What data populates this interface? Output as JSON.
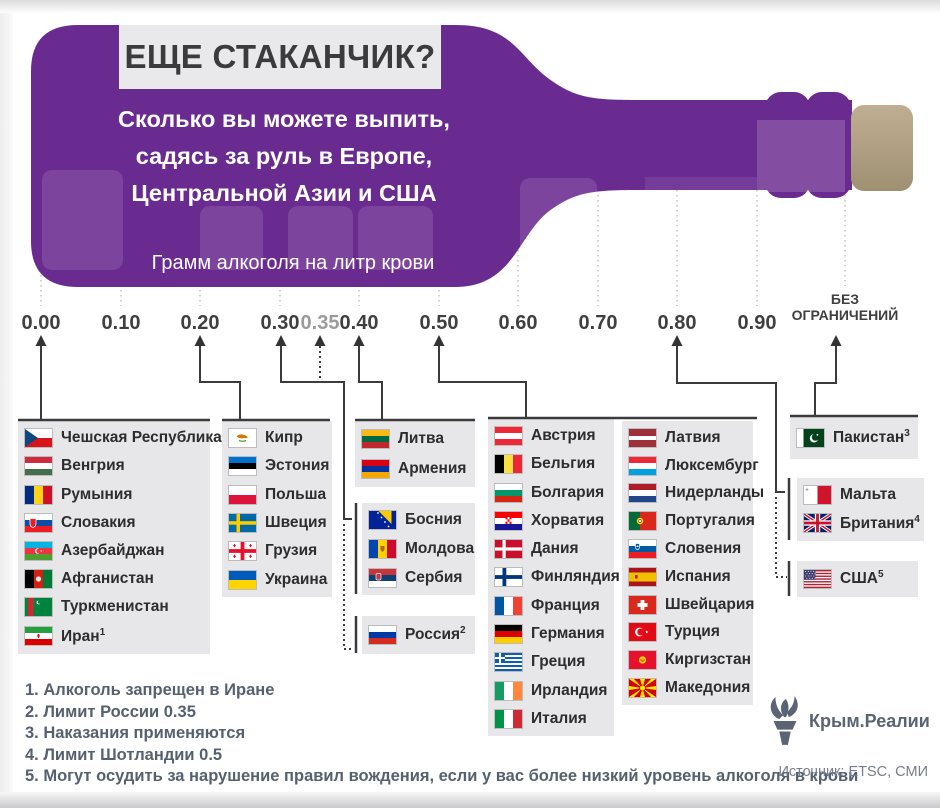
{
  "header": {
    "title": "ЕЩЕ СТАКАНЧИК?",
    "subtitle_lines": [
      "Сколько вы можете выпить,",
      "садясь за руль в Европе,",
      "Центральной Азии и США"
    ],
    "axis_label": "Грамм алкоголя на литр крови"
  },
  "scale": {
    "ticks": [
      {
        "label": "0.00"
      },
      {
        "label": "0.10"
      },
      {
        "label": "0.20"
      },
      {
        "label": "0.30"
      },
      {
        "label": "0.35",
        "muted": true
      },
      {
        "label": "0.40"
      },
      {
        "label": "0.50"
      },
      {
        "label": "0.60"
      },
      {
        "label": "0.70"
      },
      {
        "label": "0.80"
      },
      {
        "label": "0.90"
      }
    ],
    "no_limit_lines": [
      "БЕЗ",
      "ОГРАНИЧЕНИЙ"
    ]
  },
  "groups": [
    {
      "id": "g000",
      "limit": "0.00",
      "items": [
        {
          "flag": "cz",
          "label": "Чешская Республика"
        },
        {
          "flag": "hu",
          "label": "Венгрия"
        },
        {
          "flag": "ro",
          "label": "Румыния"
        },
        {
          "flag": "sk",
          "label": "Словакия"
        },
        {
          "flag": "az",
          "label": "Азербайджан"
        },
        {
          "flag": "af",
          "label": "Афганистан"
        },
        {
          "flag": "tm",
          "label": "Туркменистан"
        },
        {
          "flag": "ir",
          "label": "Иран",
          "sup": "1"
        }
      ]
    },
    {
      "id": "g020",
      "limit": "0.20",
      "items": [
        {
          "flag": "cy",
          "label": "Кипр"
        },
        {
          "flag": "ee",
          "label": "Эстония"
        },
        {
          "flag": "pl",
          "label": "Польша"
        },
        {
          "flag": "se",
          "label": "Швеция"
        },
        {
          "flag": "ge",
          "label": "Грузия"
        },
        {
          "flag": "ua",
          "label": "Украина"
        }
      ]
    },
    {
      "id": "g040",
      "limit": "0.40",
      "items": [
        {
          "flag": "lt",
          "label": "Литва"
        },
        {
          "flag": "am",
          "label": "Армения"
        }
      ]
    },
    {
      "id": "g030",
      "limit": "0.30",
      "items": [
        {
          "flag": "ba",
          "label": "Босния"
        },
        {
          "flag": "md",
          "label": "Молдова"
        },
        {
          "flag": "rs",
          "label": "Сербия"
        }
      ]
    },
    {
      "id": "g035",
      "limit": "0.35",
      "items": [
        {
          "flag": "ru",
          "label": "Россия",
          "sup": "2"
        }
      ]
    },
    {
      "id": "g050a",
      "limit": "0.50",
      "items": [
        {
          "flag": "at",
          "label": "Австрия"
        },
        {
          "flag": "be",
          "label": "Бельгия"
        },
        {
          "flag": "bg",
          "label": "Болгария"
        },
        {
          "flag": "hr",
          "label": "Хорватия"
        },
        {
          "flag": "dk",
          "label": "Дания"
        },
        {
          "flag": "fi",
          "label": "Финляндия"
        },
        {
          "flag": "fr",
          "label": "Франция"
        },
        {
          "flag": "de",
          "label": "Германия"
        },
        {
          "flag": "gr",
          "label": "Греция"
        },
        {
          "flag": "ie",
          "label": "Ирландия"
        },
        {
          "flag": "it",
          "label": "Италия"
        }
      ]
    },
    {
      "id": "g050b",
      "limit": "0.50",
      "items": [
        {
          "flag": "lv",
          "label": "Латвия"
        },
        {
          "flag": "lu",
          "label": "Люксембург"
        },
        {
          "flag": "nl",
          "label": "Нидерланды"
        },
        {
          "flag": "pt",
          "label": "Португалия"
        },
        {
          "flag": "si",
          "label": "Словения"
        },
        {
          "flag": "es",
          "label": "Испания"
        },
        {
          "flag": "ch",
          "label": "Швейцария"
        },
        {
          "flag": "tr",
          "label": "Турция"
        },
        {
          "flag": "kg",
          "label": "Киргизстан"
        },
        {
          "flag": "mk",
          "label": "Македония"
        }
      ]
    },
    {
      "id": "gnolim",
      "limit": "без ограничений",
      "items": [
        {
          "flag": "pk",
          "label": "Пакистан",
          "sup": "3"
        }
      ]
    },
    {
      "id": "g080",
      "limit": "0.80",
      "items": [
        {
          "flag": "mt",
          "label": "Мальта"
        },
        {
          "flag": "gb",
          "label": "Британия",
          "sup": "4"
        }
      ]
    },
    {
      "id": "g080usa",
      "limit": "0.80",
      "items": [
        {
          "flag": "us",
          "label": "США",
          "sup": "5"
        }
      ]
    }
  ],
  "footnotes": [
    "1. Алкоголь запрещен в Иране",
    "2. Лимит России 0.35",
    "3. Наказания применяются",
    "4. Лимит Шотландии 0.5",
    "5. Могут осудить за нарушение правил вождения, если у вас более низкий уровень алкоголя в крови"
  ],
  "brand": "Крым.Реалии",
  "source": "Источник: ETSC, СМИ",
  "colors": {
    "bottle": "#6a2b90",
    "cork": "#b3a287",
    "box_bg": "#e7e6e8",
    "line": "#3b3b3b",
    "footnote": "#57606f",
    "muted_tick": "#9b9b9b"
  },
  "chart_data": {
    "type": "scatter",
    "title": "ЕЩЕ СТАКАНЧИК?",
    "xlabel": "Грамм алкоголя на литр крови",
    "x_ticks": [
      "0.00",
      "0.10",
      "0.20",
      "0.30",
      "0.35",
      "0.40",
      "0.50",
      "0.60",
      "0.70",
      "0.80",
      "0.90",
      "БЕЗ ОГРАНИЧЕНИЙ"
    ],
    "series": [
      {
        "limit": "0.00",
        "countries": [
          "Чешская Республика",
          "Венгрия",
          "Румыния",
          "Словакия",
          "Азербайджан",
          "Афганистан",
          "Туркменистан",
          "Иран"
        ]
      },
      {
        "limit": "0.20",
        "countries": [
          "Кипр",
          "Эстония",
          "Польша",
          "Швеция",
          "Грузия",
          "Украина"
        ]
      },
      {
        "limit": "0.30",
        "countries": [
          "Босния",
          "Молдова",
          "Сербия"
        ]
      },
      {
        "limit": "0.35",
        "countries": [
          "Россия"
        ]
      },
      {
        "limit": "0.40",
        "countries": [
          "Литва",
          "Армения"
        ]
      },
      {
        "limit": "0.50",
        "countries": [
          "Австрия",
          "Бельгия",
          "Болгария",
          "Хорватия",
          "Дания",
          "Финляндия",
          "Франция",
          "Германия",
          "Греция",
          "Ирландия",
          "Италия",
          "Латвия",
          "Люксембург",
          "Нидерланды",
          "Португалия",
          "Словения",
          "Испания",
          "Швейцария",
          "Турция",
          "Киргизстан",
          "Македония"
        ]
      },
      {
        "limit": "0.80",
        "countries": [
          "Мальта",
          "Британия",
          "США"
        ]
      },
      {
        "limit": "без ограничений",
        "countries": [
          "Пакистан"
        ]
      }
    ]
  }
}
